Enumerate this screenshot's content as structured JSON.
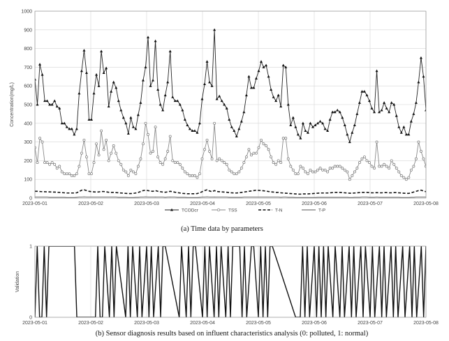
{
  "chart_data": [
    {
      "type": "line",
      "ylabel": "Concentration(mg/L)",
      "ylim": [
        0,
        1000
      ],
      "yticks": [
        0,
        100,
        200,
        300,
        400,
        500,
        600,
        700,
        800,
        900,
        1000
      ],
      "xlim": [
        "2023-05-01",
        "2023-05-08"
      ],
      "xticks": [
        "2023-05-01",
        "2023-05-02",
        "2023-05-03",
        "2023-05-04",
        "2023-05-05",
        "2023-05-06",
        "2023-05-07",
        "2023-05-08"
      ],
      "grid": true,
      "legend": "bottom-center",
      "series": [
        {
          "name": "TCODcr",
          "marker": "filled-triangle",
          "dash": "solid",
          "values": [
            635,
            500,
            715,
            660,
            520,
            520,
            500,
            500,
            520,
            490,
            480,
            400,
            400,
            380,
            370,
            370,
            340,
            370,
            560,
            680,
            790,
            670,
            420,
            420,
            560,
            660,
            600,
            785,
            670,
            695,
            490,
            570,
            620,
            590,
            520,
            470,
            430,
            400,
            345,
            430,
            380,
            370,
            445,
            510,
            630,
            700,
            860,
            600,
            630,
            840,
            580,
            500,
            470,
            550,
            620,
            785,
            540,
            520,
            520,
            500,
            470,
            420,
            390,
            370,
            360,
            360,
            350,
            400,
            530,
            610,
            730,
            620,
            600,
            900,
            530,
            545,
            520,
            500,
            480,
            420,
            380,
            360,
            330,
            370,
            410,
            460,
            550,
            650,
            590,
            590,
            640,
            680,
            730,
            700,
            710,
            650,
            580,
            540,
            520,
            550,
            490,
            710,
            700,
            500,
            390,
            430,
            380,
            340,
            320,
            400,
            360,
            350,
            400,
            380,
            390,
            400,
            410,
            400,
            370,
            360,
            420,
            460,
            460,
            470,
            460,
            430,
            390,
            340,
            300,
            350,
            390,
            450,
            510,
            570,
            570,
            550,
            520,
            480,
            460,
            680,
            460,
            470,
            510,
            480,
            460,
            510,
            500,
            440,
            380,
            350,
            380,
            340,
            340,
            410,
            450,
            510,
            620,
            750,
            650,
            470
          ]
        },
        {
          "name": "TSS",
          "marker": "open-circle",
          "dash": "solid",
          "values": [
            270,
            190,
            320,
            300,
            190,
            190,
            180,
            190,
            180,
            160,
            170,
            140,
            130,
            130,
            130,
            120,
            120,
            130,
            170,
            240,
            310,
            220,
            130,
            130,
            190,
            290,
            230,
            360,
            260,
            310,
            200,
            240,
            280,
            240,
            200,
            180,
            150,
            140,
            120,
            150,
            140,
            130,
            170,
            210,
            290,
            400,
            340,
            240,
            250,
            380,
            220,
            190,
            180,
            210,
            250,
            330,
            200,
            190,
            190,
            180,
            160,
            140,
            130,
            120,
            120,
            120,
            110,
            130,
            210,
            260,
            310,
            250,
            210,
            400,
            200,
            210,
            200,
            190,
            180,
            150,
            140,
            130,
            130,
            140,
            160,
            190,
            220,
            260,
            230,
            240,
            240,
            270,
            310,
            290,
            280,
            260,
            220,
            190,
            180,
            200,
            190,
            320,
            320,
            210,
            170,
            150,
            130,
            130,
            170,
            160,
            140,
            130,
            150,
            140,
            140,
            150,
            160,
            150,
            150,
            140,
            160,
            160,
            170,
            170,
            170,
            160,
            150,
            140,
            100,
            120,
            140,
            160,
            190,
            210,
            220,
            200,
            190,
            170,
            160,
            300,
            170,
            170,
            180,
            170,
            160,
            200,
            180,
            160,
            140,
            120,
            110,
            100,
            110,
            150,
            170,
            210,
            300,
            250,
            210,
            170
          ]
        },
        {
          "name": "T-N",
          "marker": "none",
          "dash": "dashed",
          "values": [
            36,
            36,
            35,
            34,
            34,
            33,
            33,
            32,
            32,
            31,
            30,
            29,
            28,
            27,
            27,
            27,
            27,
            28,
            35,
            42,
            44,
            40,
            36,
            34,
            33,
            32,
            33,
            35,
            35,
            33,
            31,
            30,
            30,
            29,
            28,
            27,
            26,
            25,
            24,
            24,
            25,
            27,
            30,
            35,
            40,
            42,
            40,
            37,
            36,
            40,
            36,
            34,
            32,
            31,
            33,
            36,
            34,
            31,
            29,
            27,
            25,
            24,
            23,
            23,
            23,
            23,
            24,
            28,
            34,
            40,
            44,
            38,
            34,
            40,
            35,
            34,
            33,
            32,
            31,
            29,
            28,
            27,
            27,
            28,
            30,
            32,
            34,
            36,
            38,
            40,
            42,
            41,
            40,
            39,
            37,
            35,
            33,
            32,
            30,
            30,
            28,
            27,
            26,
            25,
            24,
            23,
            22,
            21,
            21,
            22,
            22,
            22,
            23,
            24,
            25,
            26,
            27,
            27,
            27,
            27,
            28,
            29,
            30,
            30,
            30,
            29,
            28,
            27,
            26,
            26,
            27,
            28,
            29,
            30,
            30,
            30,
            29,
            28,
            28,
            29,
            28,
            28,
            29,
            29,
            28,
            28,
            29,
            29,
            28,
            27,
            26,
            25,
            25,
            28,
            32,
            36,
            40,
            42,
            38,
            34
          ]
        },
        {
          "name": "T-P",
          "marker": "none",
          "dash": "solid",
          "values": [
            5,
            5,
            5,
            5,
            5,
            5,
            4,
            4,
            4,
            4,
            4,
            4,
            4,
            3,
            3,
            3,
            3,
            4,
            5,
            6,
            7,
            6,
            5,
            5,
            5,
            5,
            5,
            6,
            6,
            5,
            5,
            5,
            5,
            5,
            4,
            4,
            4,
            4,
            3,
            3,
            3,
            4,
            4,
            5,
            6,
            7,
            6,
            5,
            5,
            6,
            5,
            5,
            5,
            4,
            5,
            6,
            5,
            5,
            4,
            4,
            4,
            4,
            3,
            3,
            3,
            3,
            3,
            4,
            5,
            6,
            7,
            6,
            5,
            6,
            5,
            5,
            5,
            5,
            5,
            4,
            4,
            4,
            4,
            4,
            4,
            5,
            5,
            6,
            6,
            6,
            6,
            6,
            6,
            6,
            6,
            5,
            5,
            5,
            5,
            5,
            4,
            5,
            5,
            4,
            4,
            4,
            3,
            3,
            3,
            3,
            3,
            3,
            3,
            3,
            3,
            4,
            4,
            4,
            4,
            4,
            4,
            4,
            4,
            4,
            4,
            4,
            4,
            4,
            3,
            3,
            4,
            4,
            4,
            5,
            5,
            5,
            4,
            4,
            4,
            5,
            4,
            4,
            4,
            4,
            4,
            4,
            4,
            4,
            4,
            3,
            3,
            3,
            3,
            4,
            4,
            5,
            6,
            6,
            5,
            5
          ]
        }
      ],
      "caption": "(a) Time data by parameters"
    },
    {
      "type": "line",
      "ylabel": "Validation",
      "ylim": [
        0,
        1
      ],
      "yticks": [
        0,
        1
      ],
      "xlim": [
        "2023-05-01",
        "2023-05-08"
      ],
      "xticks": [
        "2023-05-01",
        "2023-05-02",
        "2023-05-03",
        "2023-05-04",
        "2023-05-05",
        "2023-05-06",
        "2023-05-07",
        "2023-05-08"
      ],
      "grid": true,
      "series": [
        {
          "name": "",
          "step": true,
          "x": [
            "2023-05-01T00:00",
            "2023-05-01T01:00",
            "2023-05-01T02:00",
            "2023-05-01T03:00",
            "2023-05-01T04:00",
            "2023-05-01T05:00",
            "2023-05-01T06:00",
            "2023-05-01T07:00",
            "2023-05-01T17:00",
            "2023-05-01T18:00",
            "2023-05-02T02:00",
            "2023-05-02T03:00",
            "2023-05-02T04:00",
            "2023-05-02T05:00",
            "2023-05-02T06:00",
            "2023-05-02T08:00",
            "2023-05-02T09:00",
            "2023-05-02T10:00",
            "2023-05-02T11:00",
            "2023-05-02T15:00",
            "2023-05-02T16:00",
            "2023-05-02T17:00",
            "2023-05-02T18:00",
            "2023-05-02T20:00",
            "2023-05-02T21:00",
            "2023-05-02T22:00",
            "2023-05-03T00:00",
            "2023-05-03T01:00",
            "2023-05-03T02:00",
            "2023-05-03T03:00",
            "2023-05-03T05:00",
            "2023-05-03T06:00",
            "2023-05-03T07:00",
            "2023-05-03T08:00",
            "2023-05-03T14:00",
            "2023-05-03T15:00",
            "2023-05-03T17:00",
            "2023-05-03T18:00",
            "2023-05-03T19:00",
            "2023-05-03T20:00",
            "2023-05-03T21:00",
            "2023-05-04T00:00",
            "2023-05-04T01:00",
            "2023-05-04T02:00",
            "2023-05-04T03:00",
            "2023-05-04T05:00",
            "2023-05-04T06:00",
            "2023-05-04T07:00",
            "2023-05-04T08:00",
            "2023-05-04T10:00",
            "2023-05-04T11:00",
            "2023-05-04T12:00",
            "2023-05-04T13:00",
            "2023-05-04T16:00",
            "2023-05-04T17:00",
            "2023-05-04T18:00",
            "2023-05-04T19:00",
            "2023-05-04T21:00",
            "2023-05-04T22:00",
            "2023-05-05T00:00",
            "2023-05-05T01:00",
            "2023-05-05T02:00",
            "2023-05-05T03:00",
            "2023-05-05T04:00",
            "2023-05-05T05:00",
            "2023-05-05T06:00",
            "2023-05-05T16:00",
            "2023-05-05T18:00",
            "2023-05-05T19:00",
            "2023-05-05T20:00",
            "2023-05-05T21:00",
            "2023-05-05T22:00",
            "2023-05-06T00:00",
            "2023-05-06T01:00",
            "2023-05-06T02:00",
            "2023-05-06T03:00",
            "2023-05-06T04:00",
            "2023-05-06T05:00",
            "2023-05-06T06:00",
            "2023-05-06T08:00",
            "2023-05-06T09:00",
            "2023-05-06T11:00",
            "2023-05-06T12:00",
            "2023-05-06T13:00",
            "2023-05-06T15:00",
            "2023-05-06T16:00",
            "2023-05-06T17:00",
            "2023-05-06T18:00",
            "2023-05-06T20:00",
            "2023-05-06T21:00",
            "2023-05-06T22:00",
            "2023-05-07T00:00",
            "2023-05-07T01:00",
            "2023-05-07T02:00",
            "2023-05-07T04:00",
            "2023-05-07T05:00",
            "2023-05-07T06:00",
            "2023-05-07T07:00",
            "2023-05-07T09:00",
            "2023-05-07T10:00",
            "2023-05-07T11:00",
            "2023-05-07T12:00",
            "2023-05-07T14:00",
            "2023-05-07T15:00",
            "2023-05-07T17:00",
            "2023-05-07T18:00",
            "2023-05-07T19:00",
            "2023-05-07T20:00",
            "2023-05-07T22:00",
            "2023-05-07T23:00",
            "2023-05-08T00:00"
          ],
          "values": [
            0,
            1,
            0,
            0,
            1,
            0,
            1,
            1,
            1,
            0,
            0,
            1,
            0,
            0,
            1,
            0,
            1,
            0,
            1,
            0,
            1,
            0,
            1,
            0,
            1,
            0,
            1,
            0,
            1,
            0,
            1,
            0,
            1,
            1,
            0,
            1,
            0,
            1,
            0,
            1,
            1,
            0,
            1,
            0,
            1,
            0,
            1,
            0,
            1,
            0,
            1,
            0,
            1,
            1,
            0,
            1,
            0,
            1,
            1,
            0,
            1,
            0,
            1,
            0,
            1,
            1,
            0,
            0,
            1,
            0,
            1,
            0,
            1,
            0,
            1,
            0,
            1,
            0,
            1,
            0,
            1,
            0,
            1,
            0,
            1,
            0,
            1,
            0,
            1,
            0,
            1,
            0,
            1,
            0,
            1,
            0,
            1,
            0,
            1,
            0,
            1,
            0,
            1,
            0,
            1,
            0,
            1,
            0,
            1,
            0,
            1
          ]
        }
      ],
      "caption": "(b) Sensor diagnosis results based on influent characteristics analysis (0: polluted, 1: normal)"
    }
  ]
}
